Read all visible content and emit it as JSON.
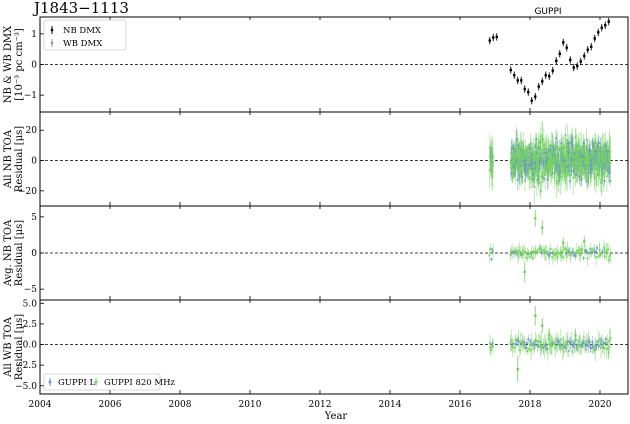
{
  "chart_data": {
    "type": "scatter",
    "title": "J1843−1113",
    "annotation": "GUPPI",
    "xlabel": "Year",
    "xlim": [
      2004,
      2020.8
    ],
    "xticks": [
      2004,
      2006,
      2008,
      2010,
      2012,
      2014,
      2016,
      2018,
      2020
    ],
    "colors": {
      "guppi_l": "#6f8fd6",
      "guppi_820": "#73d35f",
      "nb_dmx": "#000000",
      "wb_dmx": "#9a9a9a"
    },
    "panels": [
      {
        "id": "dmx",
        "ylabel_lines": [
          "NB & WB DMX",
          "[10⁻³ pc cm⁻³]"
        ],
        "ylim": [
          -1.55,
          1.55
        ],
        "yticks": [
          -1,
          0,
          1
        ],
        "legend": [
          "NB DMX",
          "WB DMX"
        ],
        "series": [
          {
            "name": "NB DMX",
            "x": [
              16.85,
              16.95,
              17.05,
              17.45,
              17.55,
              17.65,
              17.75,
              17.85,
              17.95,
              18.05,
              18.15,
              18.25,
              18.35,
              18.45,
              18.55,
              18.65,
              18.75,
              18.85,
              18.95,
              19.05,
              19.15,
              19.25,
              19.35,
              19.45,
              19.55,
              19.65,
              19.75,
              19.85,
              19.95,
              20.05,
              20.15,
              20.25
            ],
            "y": [
              0.78,
              0.88,
              0.9,
              -0.18,
              -0.35,
              -0.52,
              -0.52,
              -0.8,
              -0.9,
              -1.18,
              -1.05,
              -0.72,
              -0.55,
              -0.35,
              -0.38,
              -0.2,
              0.12,
              0.35,
              0.72,
              0.55,
              0.15,
              -0.1,
              -0.05,
              0.1,
              0.28,
              0.48,
              0.58,
              0.85,
              1.05,
              1.2,
              1.28,
              1.4
            ],
            "err": 0.12
          }
        ]
      },
      {
        "id": "nb-all",
        "ylabel_lines": [
          "All NB TOA",
          "Residual [μs]"
        ],
        "ylim": [
          -30,
          32
        ],
        "yticks": [
          -20,
          0,
          20
        ]
      },
      {
        "id": "nb-avg",
        "ylabel_lines": [
          "Avg. NB TOA",
          "Residual [μs]"
        ],
        "ylim": [
          -6.5,
          6.5
        ],
        "yticks": [
          -5,
          0,
          5
        ]
      },
      {
        "id": "wb",
        "ylabel_lines": [
          "All WB TOA",
          "Residual [μs]"
        ],
        "ylim": [
          -6.0,
          5.4
        ],
        "yticks": [
          -5.0,
          -2.5,
          0.0,
          2.5,
          5.0
        ],
        "ytick_labels": [
          "−5.0",
          "−2.5",
          "0.0",
          "2.5",
          "5.0"
        ],
        "legend": [
          "GUPPI L",
          "GUPPI 820 MHz"
        ]
      }
    ],
    "toa_epochs": {
      "x_ranges": [
        [
          16.85,
          16.95
        ],
        [
          17.45,
          20.3
        ]
      ],
      "nb_all_scatter_std": 6,
      "nb_all_max_err": 12,
      "nb_avg_scatter_std": 0.35,
      "nb_avg_max_err": 1.2,
      "wb_scatter_std": 0.4,
      "wb_max_err": 1.5
    },
    "outliers": {
      "nb_avg": [
        {
          "x": 18.15,
          "y": 4.8,
          "err": 1.2
        },
        {
          "x": 18.35,
          "y": 3.5,
          "err": 1.0
        },
        {
          "x": 17.85,
          "y": -2.6,
          "err": 1.4
        },
        {
          "x": 19.55,
          "y": 1.6,
          "err": 0.7
        },
        {
          "x": 18.95,
          "y": 1.4,
          "err": 0.7
        }
      ],
      "wb": [
        {
          "x": 18.15,
          "y": 3.5,
          "err": 1.2
        },
        {
          "x": 18.35,
          "y": 2.3,
          "err": 0.9
        },
        {
          "x": 17.65,
          "y": -3.0,
          "err": 1.6
        },
        {
          "x": 18.55,
          "y": 1.2,
          "err": 0.8
        },
        {
          "x": 19.3,
          "y": 1.1,
          "err": 0.7
        }
      ]
    }
  }
}
